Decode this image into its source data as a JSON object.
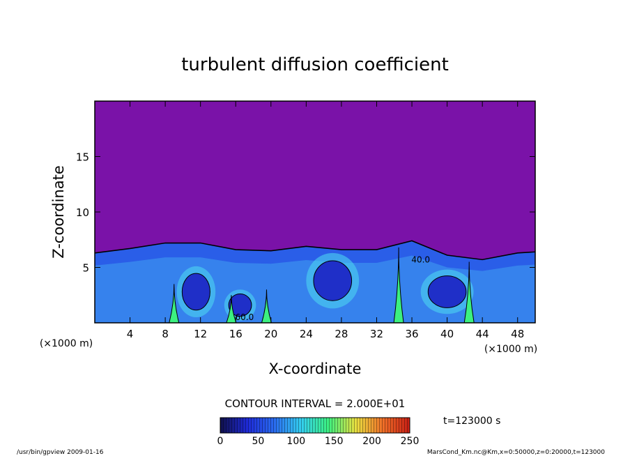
{
  "chart_data": {
    "type": "heatmap",
    "title": "turbulent diffusion coefficient",
    "xlabel": "X-coordinate",
    "ylabel": "Z-coordinate",
    "x_unit": "(×1000 m)",
    "y_unit": "(×1000 m)",
    "xlim": [
      0,
      50
    ],
    "ylim": [
      0,
      20
    ],
    "x_ticks": [
      4,
      8,
      12,
      16,
      20,
      24,
      28,
      32,
      36,
      40,
      44,
      48
    ],
    "y_ticks": [
      5,
      10,
      15
    ],
    "contour_interval_text": "CONTOUR INTERVAL = 2.000E+01",
    "contour_labels": [
      {
        "text": "40.0",
        "x": 37.0,
        "z": 5.7
      },
      {
        "text": "60.0",
        "x": 17.0,
        "z": 0.5
      }
    ],
    "mixed_layer_top_km": [
      {
        "x": 0,
        "z": 6.3
      },
      {
        "x": 4,
        "z": 6.7
      },
      {
        "x": 8,
        "z": 7.2
      },
      {
        "x": 12,
        "z": 7.2
      },
      {
        "x": 16,
        "z": 6.6
      },
      {
        "x": 20,
        "z": 6.5
      },
      {
        "x": 24,
        "z": 6.9
      },
      {
        "x": 28,
        "z": 6.6
      },
      {
        "x": 32,
        "z": 6.6
      },
      {
        "x": 36,
        "z": 7.4
      },
      {
        "x": 40,
        "z": 6.1
      },
      {
        "x": 44,
        "z": 5.7
      },
      {
        "x": 48,
        "z": 6.3
      },
      {
        "x": 50,
        "z": 6.4
      }
    ],
    "plumes": [
      {
        "x": 9.0,
        "top": 3.5
      },
      {
        "x": 15.5,
        "top": 2.5
      },
      {
        "x": 19.5,
        "top": 3.0
      },
      {
        "x": 34.5,
        "top": 6.8
      },
      {
        "x": 42.5,
        "top": 5.5
      }
    ],
    "cells": [
      {
        "x": 11.5,
        "z": 2.8,
        "rx": 2.2,
        "rz": 2.3
      },
      {
        "x": 16.5,
        "z": 1.6,
        "rx": 1.8,
        "rz": 1.4
      },
      {
        "x": 27.0,
        "z": 3.8,
        "rx": 3.0,
        "rz": 2.5
      },
      {
        "x": 40.0,
        "z": 2.8,
        "rx": 3.0,
        "rz": 2.0
      }
    ],
    "colorbar": {
      "min": 0,
      "max": 250,
      "ticks": [
        0,
        50,
        100,
        150,
        200,
        250
      ]
    },
    "time_label": "t=123000 s",
    "colors": {
      "background_field": "#7a12a8",
      "colorbar_stops": [
        "#10104a",
        "#1e2ad8",
        "#2a6cf0",
        "#34d0f0",
        "#3cf080",
        "#e8e040",
        "#f07028",
        "#c81e14"
      ]
    }
  },
  "footer": {
    "left": "/usr/bin/gpview   2009-01-16",
    "right": "MarsCond_Km.nc@Km,x=0:50000,z=0:20000,t=123000"
  }
}
